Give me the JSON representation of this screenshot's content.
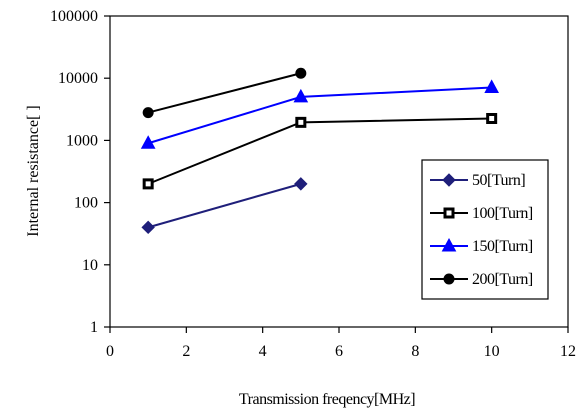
{
  "chart_data": {
    "type": "line",
    "title": "",
    "xlabel": "Transmission freqency[MHz]",
    "ylabel": "Internal resistance[   ]",
    "xlim": [
      0,
      12
    ],
    "ylim": [
      1,
      100000
    ],
    "yscale": "log",
    "x_ticks": [
      0,
      2,
      4,
      6,
      8,
      10,
      12
    ],
    "x_tick_labels": [
      "0",
      "2",
      "4",
      "6",
      "8",
      "10",
      "12"
    ],
    "y_ticks": [
      1,
      10,
      100,
      1000,
      10000,
      100000
    ],
    "y_tick_labels": [
      "1",
      "10",
      "100",
      "1000",
      "10000",
      "100000"
    ],
    "grid": false,
    "legend_position": "right",
    "series": [
      {
        "name": "50[Turn]",
        "color": "#1f1f7a",
        "marker": "diamond",
        "x": [
          1,
          5
        ],
        "y": [
          40,
          200
        ]
      },
      {
        "name": "100[Turn]",
        "color": "#000000",
        "marker": "square-open",
        "x": [
          1,
          5,
          10
        ],
        "y": [
          200,
          1950,
          2250
        ]
      },
      {
        "name": "150[Turn]",
        "color": "#0000ff",
        "marker": "triangle",
        "x": [
          1,
          5,
          10
        ],
        "y": [
          900,
          5000,
          7100
        ]
      },
      {
        "name": "200[Turn]",
        "color": "#000000",
        "marker": "circle",
        "x": [
          1,
          5
        ],
        "y": [
          2800,
          12000
        ]
      }
    ]
  }
}
